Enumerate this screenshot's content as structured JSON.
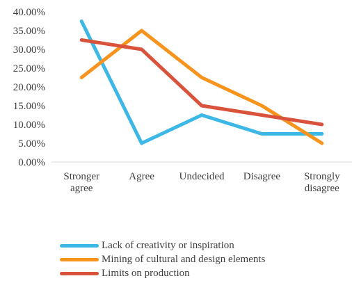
{
  "chart_data": {
    "type": "line",
    "categories": [
      [
        "Stronger",
        "agree"
      ],
      [
        "Agree"
      ],
      [
        "Undecided"
      ],
      [
        "Disagree"
      ],
      [
        "Strongly",
        "disagree"
      ]
    ],
    "y_ticks": [
      "0.00%",
      "5.00%",
      "10.00%",
      "15.00%",
      "20.00%",
      "25.00%",
      "30.00%",
      "35.00%",
      "40.00%"
    ],
    "ylim": [
      0,
      40
    ],
    "y_unit": "%",
    "grid": "none",
    "legend_position": "bottom",
    "series": [
      {
        "name": "Lack of creativity or inspiration",
        "color": "#3DB8E6",
        "values": [
          37.5,
          5.0,
          12.5,
          7.5,
          7.5
        ]
      },
      {
        "name": "Mining of cultural and design elements",
        "color": "#F7941D",
        "values": [
          22.5,
          35.0,
          22.5,
          15.0,
          5.0
        ]
      },
      {
        "name": "Limits on production",
        "color": "#D9533C",
        "values": [
          32.5,
          30.0,
          15.0,
          12.5,
          10.0
        ]
      }
    ]
  }
}
